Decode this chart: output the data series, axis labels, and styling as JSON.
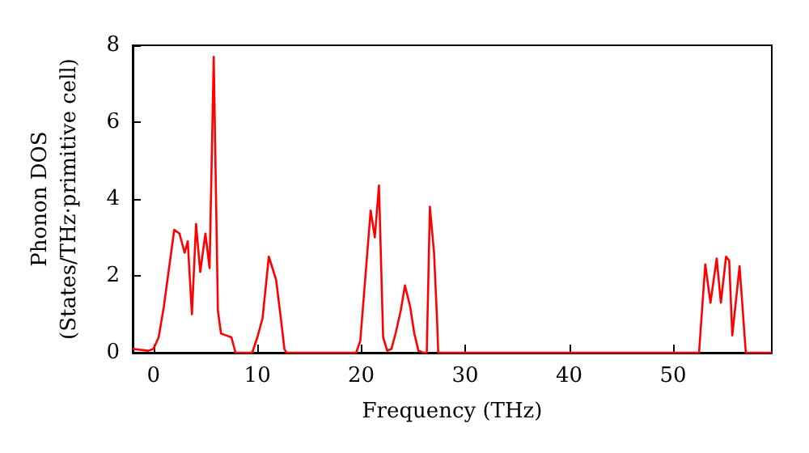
{
  "chart_data": {
    "type": "line",
    "xlabel": "Frequency (THz)",
    "ylabel": "Phonon DOS\n(States/THz·primitive cell)",
    "x": [
      -2,
      -0.5,
      0,
      0.5,
      1,
      2,
      2.5,
      3,
      3.3,
      3.7,
      4.1,
      4.5,
      5,
      5.4,
      5.8,
      6.2,
      6.5,
      7,
      7.5,
      7.9,
      9.5,
      10,
      10.5,
      11.1,
      11.8,
      12.3,
      12.6,
      12.8,
      19.5,
      19.9,
      20.4,
      20.9,
      21.3,
      21.7,
      22.1,
      22.5,
      22.9,
      23.3,
      23.8,
      24.2,
      24.7,
      25.1,
      25.5,
      26,
      26.3,
      26.6,
      27,
      27.3,
      27.4,
      52.5,
      53.1,
      53.6,
      54.2,
      54.6,
      55.1,
      55.4,
      55.7,
      56.4,
      57,
      59.5
    ],
    "series": [
      {
        "color": "#ff0000",
        "values": [
          0.1,
          0.05,
          0.1,
          0.4,
          1.2,
          3.2,
          3.1,
          2.6,
          2.9,
          1.0,
          3.35,
          2.1,
          3.1,
          2.2,
          7.7,
          1.1,
          0.5,
          0.45,
          0.4,
          0,
          0,
          0.4,
          0.9,
          2.5,
          1.9,
          0.8,
          0.1,
          0,
          0,
          0.3,
          2.0,
          3.7,
          3.0,
          4.35,
          0.4,
          0.05,
          0.1,
          0.5,
          1.1,
          1.75,
          1.2,
          0.5,
          0.05,
          0,
          0,
          3.8,
          2.6,
          0.8,
          0,
          0,
          2.3,
          1.3,
          2.45,
          1.3,
          2.5,
          2.4,
          0.45,
          2.25,
          0,
          0
        ]
      }
    ],
    "xlim": [
      -2,
      59.5
    ],
    "xticks": [
      0,
      10,
      20,
      30,
      40,
      50
    ],
    "ylim": [
      0,
      8
    ],
    "yticks": [
      0,
      2,
      4,
      6,
      8
    ],
    "grid": false,
    "marker": "none",
    "line_style": "solid"
  }
}
